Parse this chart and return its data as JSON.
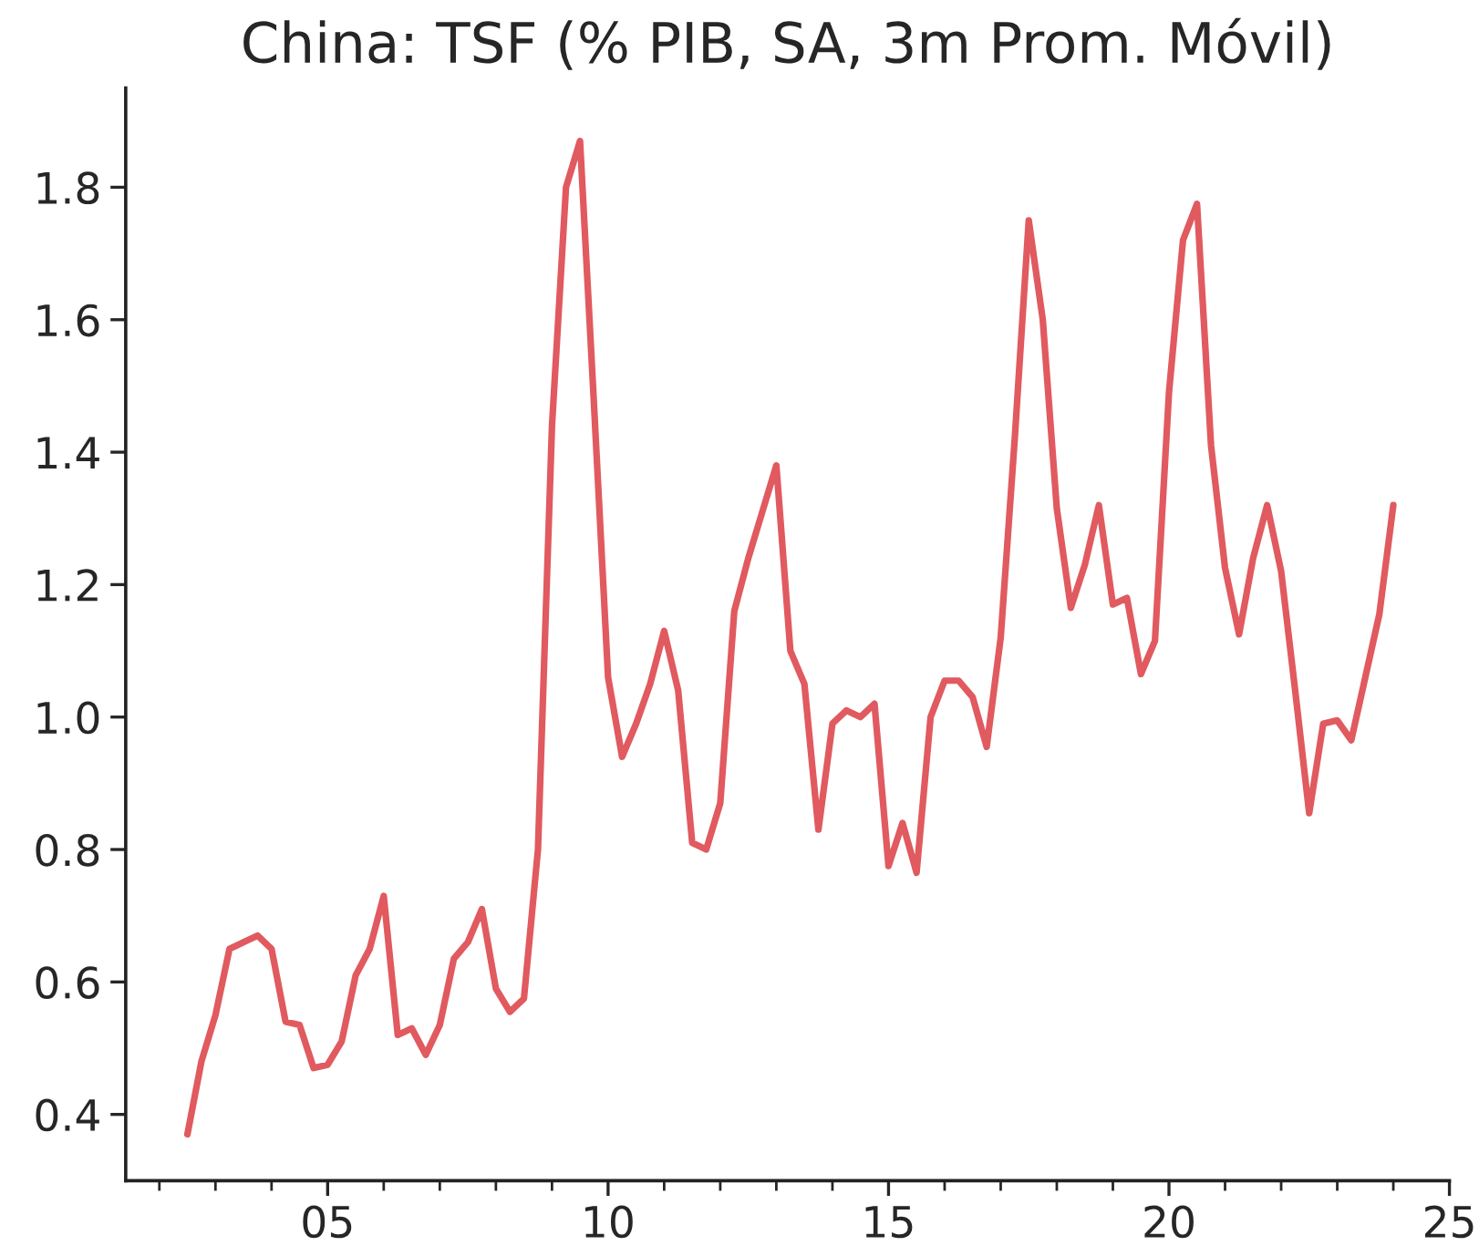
{
  "chart_data": {
    "type": "line",
    "title": "China: TSF (% PIB, SA, 3m Prom. Móvil)",
    "x": [
      2002.5,
      2002.75,
      2003.0,
      2003.25,
      2003.5,
      2003.75,
      2004.0,
      2004.25,
      2004.5,
      2004.75,
      2005.0,
      2005.25,
      2005.5,
      2005.75,
      2006.0,
      2006.25,
      2006.5,
      2006.75,
      2007.0,
      2007.25,
      2007.5,
      2007.75,
      2008.0,
      2008.25,
      2008.5,
      2008.75,
      2009.0,
      2009.25,
      2009.5,
      2009.75,
      2010.0,
      2010.25,
      2010.5,
      2010.75,
      2011.0,
      2011.25,
      2011.5,
      2011.75,
      2012.0,
      2012.25,
      2012.5,
      2012.75,
      2013.0,
      2013.25,
      2013.5,
      2013.75,
      2014.0,
      2014.25,
      2014.5,
      2014.75,
      2015.0,
      2015.25,
      2015.5,
      2015.75,
      2016.0,
      2016.25,
      2016.5,
      2016.75,
      2017.0,
      2017.25,
      2017.5,
      2017.75,
      2018.0,
      2018.25,
      2018.5,
      2018.75,
      2019.0,
      2019.25,
      2019.5,
      2019.75,
      2020.0,
      2020.25,
      2020.5,
      2020.75,
      2021.0,
      2021.25,
      2021.5,
      2021.75,
      2022.0,
      2022.25,
      2022.5,
      2022.75,
      2023.0,
      2023.25,
      2023.5,
      2023.75,
      2024.0
    ],
    "series": [
      {
        "color": "#e05a5f",
        "values": [
          0.37,
          0.48,
          0.55,
          0.65,
          0.66,
          0.67,
          0.65,
          0.54,
          0.535,
          0.47,
          0.475,
          0.51,
          0.61,
          0.65,
          0.73,
          0.52,
          0.53,
          0.49,
          0.535,
          0.635,
          0.66,
          0.71,
          0.59,
          0.555,
          0.575,
          0.8,
          1.44,
          1.8,
          1.87,
          1.47,
          1.06,
          0.94,
          0.99,
          1.05,
          1.13,
          1.04,
          0.81,
          0.8,
          0.87,
          1.16,
          1.24,
          1.31,
          1.38,
          1.1,
          1.05,
          0.83,
          0.99,
          1.01,
          1.0,
          1.02,
          0.775,
          0.84,
          0.765,
          1.0,
          1.055,
          1.055,
          1.03,
          0.955,
          1.12,
          1.42,
          1.75,
          1.6,
          1.315,
          1.165,
          1.23,
          1.32,
          1.17,
          1.18,
          1.065,
          1.115,
          1.49,
          1.72,
          1.775,
          1.41,
          1.225,
          1.125,
          1.24,
          1.32,
          1.22,
          1.04,
          0.855,
          0.99,
          0.995,
          0.965,
          1.06,
          1.155,
          1.32
        ]
      }
    ],
    "xlim": [
      2001.4,
      2025
    ],
    "xticks": [
      {
        "value": 2002,
        "label": null
      },
      {
        "value": 2003,
        "label": null
      },
      {
        "value": 2004,
        "label": null
      },
      {
        "value": 2005,
        "label": "05"
      },
      {
        "value": 2006,
        "label": null
      },
      {
        "value": 2007,
        "label": null
      },
      {
        "value": 2008,
        "label": null
      },
      {
        "value": 2009,
        "label": null
      },
      {
        "value": 2010,
        "label": "10"
      },
      {
        "value": 2011,
        "label": null
      },
      {
        "value": 2012,
        "label": null
      },
      {
        "value": 2013,
        "label": null
      },
      {
        "value": 2014,
        "label": null
      },
      {
        "value": 2015,
        "label": "15"
      },
      {
        "value": 2016,
        "label": null
      },
      {
        "value": 2017,
        "label": null
      },
      {
        "value": 2018,
        "label": null
      },
      {
        "value": 2019,
        "label": null
      },
      {
        "value": 2020,
        "label": "20"
      },
      {
        "value": 2021,
        "label": null
      },
      {
        "value": 2022,
        "label": null
      },
      {
        "value": 2023,
        "label": null
      },
      {
        "value": 2024,
        "label": null
      },
      {
        "value": 2025,
        "label": "25"
      }
    ],
    "ylim": [
      0.3,
      1.95
    ],
    "yticks": [
      0.4,
      0.6,
      0.8,
      {
        "value": 1,
        "label": "1.0"
      },
      1.2,
      1.4,
      1.6,
      1.8
    ],
    "grid": false,
    "marker": "none",
    "line_style": "solid"
  }
}
